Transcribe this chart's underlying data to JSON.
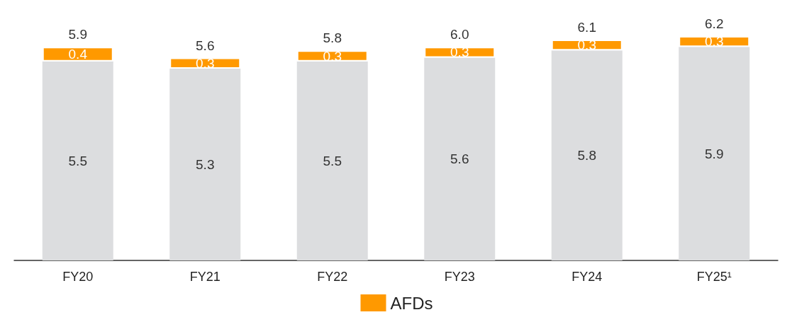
{
  "chart_data": {
    "type": "bar",
    "stacked": true,
    "categories": [
      "FY20",
      "FY21",
      "FY22",
      "FY23",
      "FY24",
      "FY25¹"
    ],
    "series": [
      {
        "color": "#dcdddf",
        "values": [
          5.5,
          5.3,
          5.5,
          5.6,
          5.8,
          5.9
        ]
      },
      {
        "name": "AFDs",
        "color": "#ff9900",
        "values": [
          0.4,
          0.3,
          0.3,
          0.3,
          0.3,
          0.3
        ]
      }
    ],
    "data_labels": true,
    "totals": [
      "5.9",
      "5.6",
      "5.8",
      "6.0",
      "6.1",
      "6.2"
    ],
    "legend": "bottom"
  }
}
